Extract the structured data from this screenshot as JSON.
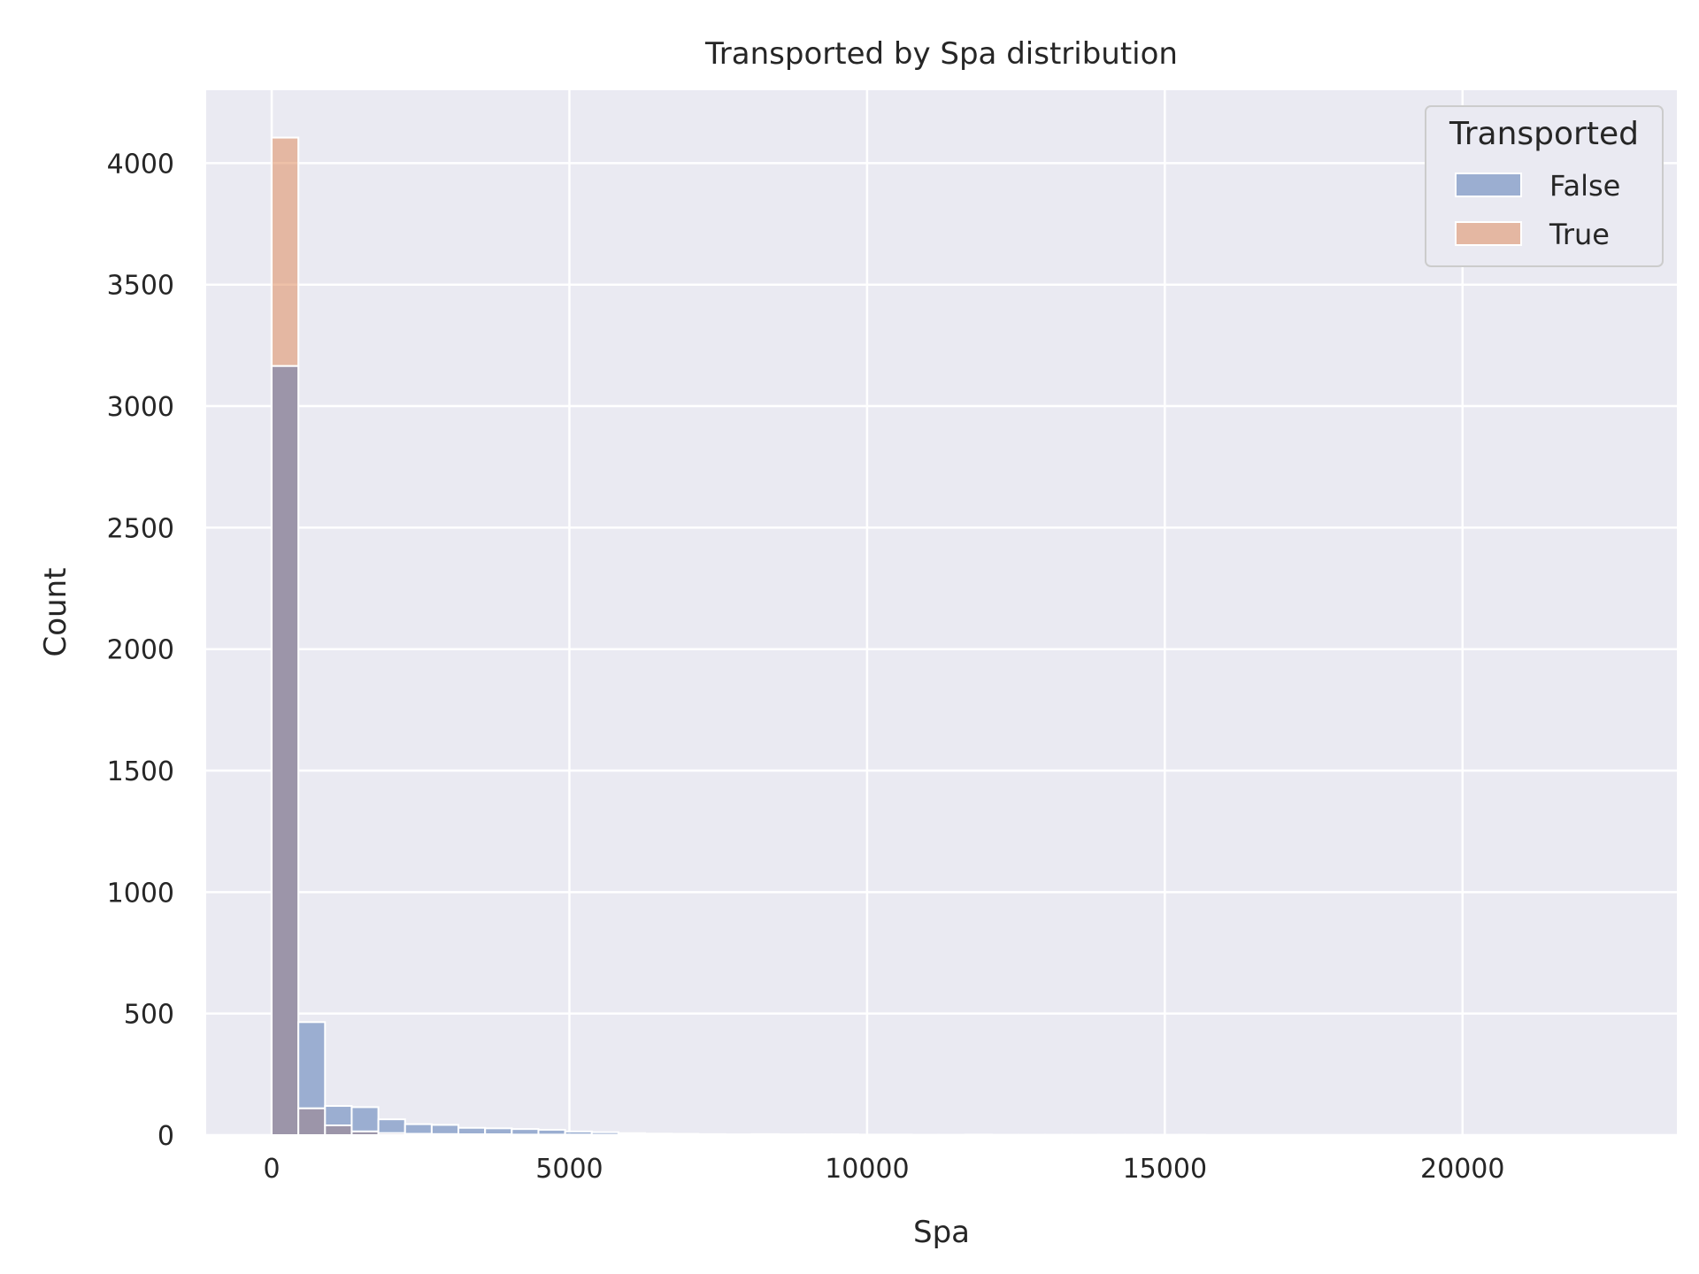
{
  "chart_data": {
    "type": "bar",
    "title": "Transported by Spa distribution",
    "xlabel": "Spa",
    "ylabel": "Count",
    "xlim": [
      -1100,
      23600
    ],
    "ylim": [
      0,
      4300
    ],
    "xticks": [
      0,
      5000,
      10000,
      15000,
      20000
    ],
    "yticks": [
      0,
      500,
      1000,
      1500,
      2000,
      2500,
      3000,
      3500,
      4000
    ],
    "grid": true,
    "legend": {
      "title": "Transported",
      "placement": "top-right"
    },
    "bin_width": 448,
    "bin_start": 0,
    "series": [
      {
        "name": "False",
        "color": "#4c72b0",
        "values": [
          3165,
          465,
          120,
          115,
          65,
          45,
          42,
          30,
          28,
          25,
          22,
          15,
          12,
          8,
          6,
          5,
          4,
          3,
          4,
          3,
          3,
          3,
          2,
          2,
          1,
          1,
          2,
          1,
          1,
          1,
          1,
          1,
          1,
          1,
          1,
          0,
          0,
          0,
          0,
          0,
          0,
          0,
          0,
          0,
          0,
          0,
          0,
          0,
          0,
          0
        ]
      },
      {
        "name": "True",
        "color": "#dd8452",
        "values": [
          4105,
          110,
          40,
          15,
          8,
          5,
          4,
          3,
          3,
          2,
          2,
          2,
          1,
          1,
          1,
          1,
          1,
          0,
          1,
          0,
          0,
          0,
          0,
          0,
          0,
          0,
          0,
          0,
          0,
          0,
          0,
          0,
          0,
          0,
          0,
          0,
          0,
          0,
          0,
          0,
          0,
          0,
          0,
          0,
          0,
          0,
          0,
          0,
          0,
          0
        ]
      }
    ],
    "overlap_color": "#9c95a9",
    "background_color": "#eaeaf2",
    "grid_color": "#ffffff"
  }
}
